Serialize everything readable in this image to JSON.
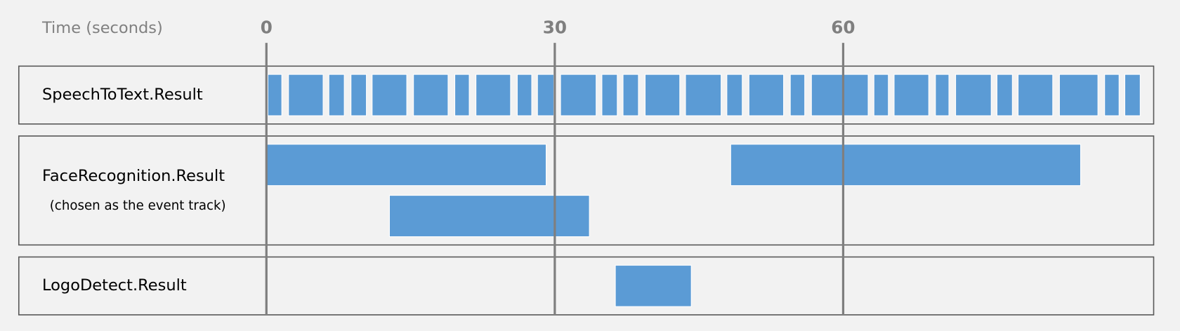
{
  "chart_data": {
    "type": "timeline",
    "x_label": "Time (seconds)",
    "xlim": [
      0,
      92.3
    ],
    "xticks": [
      0,
      30,
      60
    ],
    "color": "#5b9bd5",
    "tracks": [
      {
        "name": "SpeechToText.Result",
        "intervals": [
          [
            0.15,
            1.6
          ],
          [
            2.3,
            5.9
          ],
          [
            6.5,
            8.1
          ],
          [
            8.8,
            10.4
          ],
          [
            11.0,
            14.6
          ],
          [
            15.3,
            18.9
          ],
          [
            19.6,
            21.1
          ],
          [
            21.8,
            25.4
          ],
          [
            26.1,
            27.6
          ],
          [
            28.2,
            29.9
          ],
          [
            30.6,
            34.3
          ],
          [
            34.9,
            36.5
          ],
          [
            37.1,
            38.7
          ],
          [
            39.4,
            43.0
          ],
          [
            43.6,
            47.3
          ],
          [
            47.9,
            49.5
          ],
          [
            50.2,
            53.8
          ],
          [
            54.5,
            56.0
          ],
          [
            56.7,
            62.6
          ],
          [
            63.2,
            64.7
          ],
          [
            65.3,
            68.9
          ],
          [
            69.6,
            71.0
          ],
          [
            71.7,
            75.4
          ],
          [
            76.0,
            77.6
          ],
          [
            78.2,
            81.8
          ],
          [
            82.5,
            86.5
          ],
          [
            87.2,
            88.7
          ],
          [
            89.3,
            90.9
          ]
        ]
      },
      {
        "name": "FaceRecognition.Result",
        "subtitle": "(chosen as the event track)",
        "intervals": [
          [
            0,
            29.1
          ],
          [
            12.8,
            33.6
          ],
          [
            48.3,
            84.7
          ]
        ]
      },
      {
        "name": "LogoDetect.Result",
        "intervals": [
          [
            36.3,
            44.2
          ]
        ]
      }
    ]
  }
}
